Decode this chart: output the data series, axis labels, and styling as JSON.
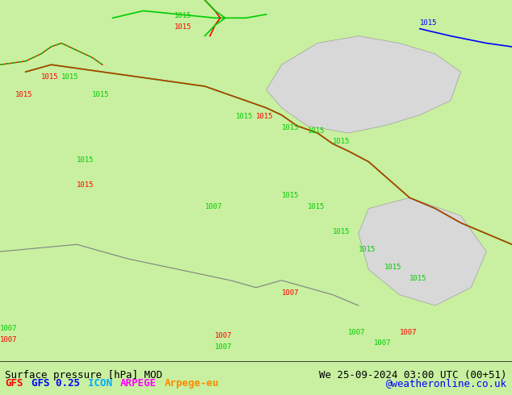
{
  "background_color": "#c8f0a0",
  "fig_width": 6.34,
  "fig_height": 4.9,
  "dpi": 100,
  "bottom_bar_color": "#000000",
  "bottom_bar_bg": "#ffffff",
  "title_left": "Surface pressure [hPa] MOD",
  "title_right": "We 25-09-2024 03:00 UTC (00+51)",
  "legend_items": [
    {
      "text": "GFS",
      "color": "#ff0000"
    },
    {
      "text": "GFS 0.25",
      "color": "#0000ff"
    },
    {
      "text": "ICON",
      "color": "#00aaff"
    },
    {
      "text": "ARPEGE",
      "color": "#ff00ff"
    },
    {
      "text": "Arpege-eu",
      "color": "#ff8800"
    }
  ],
  "credit": "@weatheronline.co.uk",
  "credit_color": "#0000ff",
  "font_size_title": 9,
  "font_size_legend": 9,
  "font_size_credit": 9,
  "map_bg_land": "#c8f0a0",
  "map_bg_sea": "#d0e8f8",
  "contour_lines": [
    {
      "pressure": 1015,
      "color_gfs": "#ff0000",
      "color_gfs025": "#0000ff",
      "color_icon": "#00aaff",
      "color_arpege": "#ff00ff",
      "color_arpegeu": "#ff8800"
    }
  ]
}
